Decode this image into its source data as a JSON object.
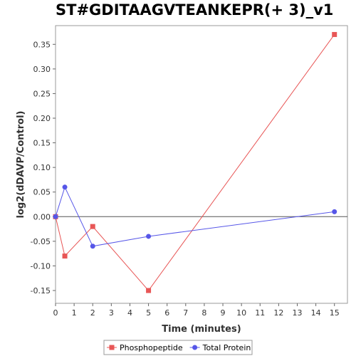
{
  "chart_data": {
    "type": "line",
    "title": "ST#GDITAAGVTEANKEPR(+ 3)_v1",
    "xlabel": "Time (minutes)",
    "ylabel": "log2(dDAVP/Control)",
    "xlim": [
      0,
      15.7
    ],
    "ylim": [
      -0.176,
      0.388
    ],
    "x_ticks": [
      0,
      1,
      2,
      3,
      4,
      5,
      6,
      7,
      8,
      9,
      10,
      11,
      12,
      13,
      14,
      15
    ],
    "y_ticks": [
      -0.15,
      -0.1,
      -0.05,
      0.0,
      0.05,
      0.1,
      0.15,
      0.2,
      0.25,
      0.3,
      0.35
    ],
    "y_tick_labels": [
      "-0.15",
      "-0.10",
      "-0.05",
      "0.00",
      "0.05",
      "0.10",
      "0.15",
      "0.20",
      "0.25",
      "0.30",
      "0.35"
    ],
    "zero_line": true,
    "grid": false,
    "legend_position": "bottom",
    "series": [
      {
        "name": "Phosphopeptide",
        "color": "#e85656",
        "marker": "square",
        "x": [
          0,
          0.5,
          2,
          5,
          15
        ],
        "y": [
          0.0,
          -0.08,
          -0.02,
          -0.15,
          0.37
        ]
      },
      {
        "name": "Total Protein",
        "color": "#5656e8",
        "marker": "circle",
        "x": [
          0,
          0.5,
          2,
          5,
          15
        ],
        "y": [
          0.0,
          0.06,
          -0.06,
          -0.04,
          0.01
        ]
      }
    ]
  }
}
